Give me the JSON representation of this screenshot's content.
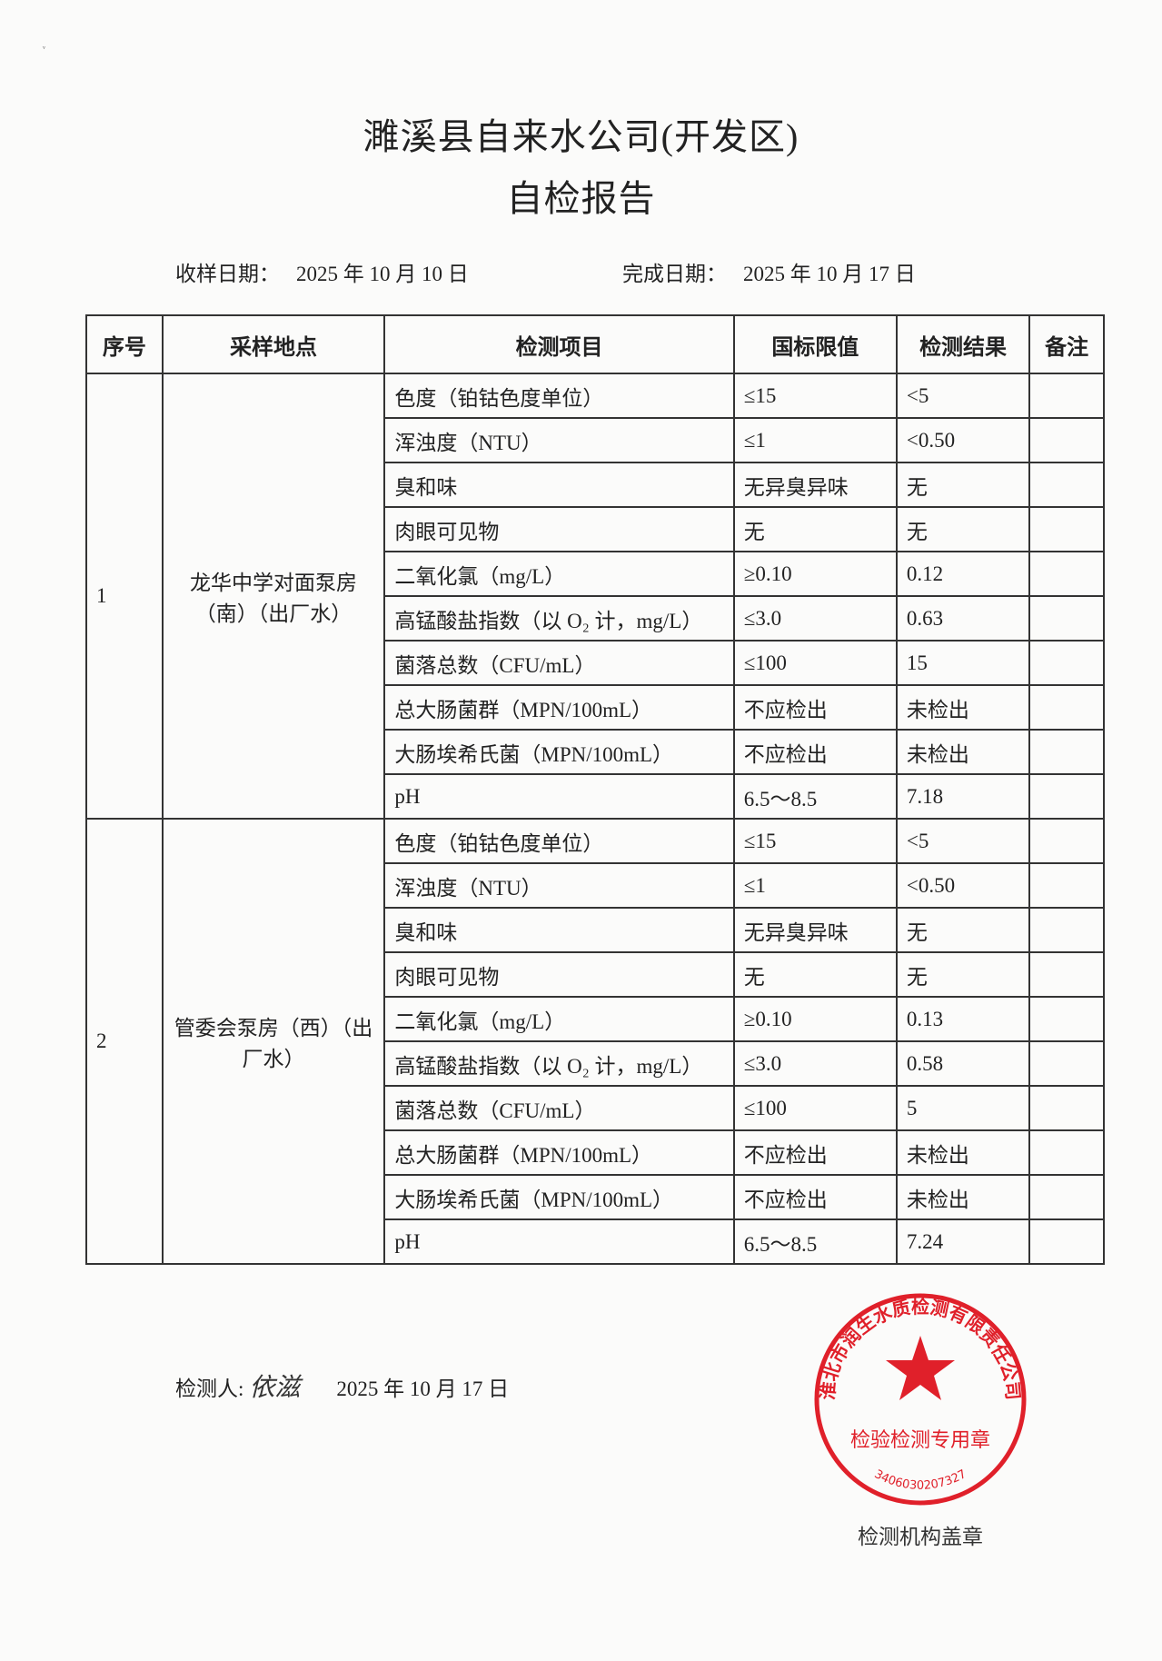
{
  "header": {
    "company": "濉溪县自来水公司(开发区)",
    "report_title": "自检报告"
  },
  "dates": {
    "sample_label": "收样日期：",
    "sample_date": "2025 年 10 月 10 日",
    "complete_label": "完成日期：",
    "complete_date": "2025 年 10 月 17 日"
  },
  "table": {
    "headers": [
      "序号",
      "采样地点",
      "检测项目",
      "国标限值",
      "检测结果",
      "备注"
    ],
    "groups": [
      {
        "seq": "1",
        "location": "龙华中学对面泵房（南）（出厂水）",
        "rows": [
          [
            "色度（铂钴色度单位）",
            "≤15",
            "<5",
            ""
          ],
          [
            "浑浊度（NTU）",
            "≤1",
            "<0.50",
            ""
          ],
          [
            "臭和味",
            "无异臭异味",
            "无",
            ""
          ],
          [
            "肉眼可见物",
            "无",
            "无",
            ""
          ],
          [
            "二氧化氯（mg/L）",
            "≥0.10",
            "0.12",
            ""
          ],
          [
            "高锰酸盐指数（以 O₂ 计，mg/L）",
            "≤3.0",
            "0.63",
            ""
          ],
          [
            "菌落总数（CFU/mL）",
            "≤100",
            "15",
            ""
          ],
          [
            "总大肠菌群（MPN/100mL）",
            "不应检出",
            "未检出",
            ""
          ],
          [
            "大肠埃希氏菌（MPN/100mL）",
            "不应检出",
            "未检出",
            ""
          ],
          [
            "pH",
            "6.5～8.5",
            "7.18",
            ""
          ]
        ]
      },
      {
        "seq": "2",
        "location": "管委会泵房（西）（出厂水）",
        "rows": [
          [
            "色度（铂钴色度单位）",
            "≤15",
            "<5",
            ""
          ],
          [
            "浑浊度（NTU）",
            "≤1",
            "<0.50",
            ""
          ],
          [
            "臭和味",
            "无异臭异味",
            "无",
            ""
          ],
          [
            "肉眼可见物",
            "无",
            "无",
            ""
          ],
          [
            "二氧化氯（mg/L）",
            "≥0.10",
            "0.13",
            ""
          ],
          [
            "高锰酸盐指数（以 O₂ 计，mg/L）",
            "≤3.0",
            "0.58",
            ""
          ],
          [
            "菌落总数（CFU/mL）",
            "≤100",
            "5",
            ""
          ],
          [
            "总大肠菌群（MPN/100mL）",
            "不应检出",
            "未检出",
            ""
          ],
          [
            "大肠埃希氏菌（MPN/100mL）",
            "不应检出",
            "未检出",
            ""
          ],
          [
            "pH",
            "6.5～8.5",
            "7.24",
            ""
          ]
        ]
      }
    ]
  },
  "footer": {
    "tester_label": "检测人:",
    "tester_signature": "依滋",
    "signed_date": "2025 年 10 月 17 日",
    "stamp_label": "检测机构盖章"
  },
  "stamp": {
    "org": "淮北市润生水质检测有限责任公司",
    "purpose": "检验检测专用章",
    "code": "3406030207327",
    "color": "#e0202a"
  }
}
